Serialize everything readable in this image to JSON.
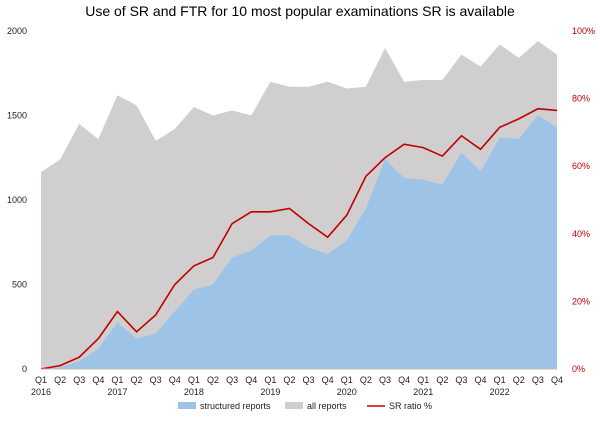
{
  "chart_data": {
    "type": "area",
    "title": "Use of SR and FTR for 10 most popular examinations SR is available",
    "categories": [
      "Q1",
      "Q2",
      "Q3",
      "Q4",
      "Q1",
      "Q2",
      "Q3",
      "Q4",
      "Q1",
      "Q2",
      "Q3",
      "Q4",
      "Q1",
      "Q2",
      "Q3",
      "Q4",
      "Q1",
      "Q2",
      "Q3",
      "Q4",
      "Q1",
      "Q2",
      "Q3",
      "Q4",
      "Q1",
      "Q2",
      "Q3",
      "Q4"
    ],
    "years": [
      {
        "label": "2016",
        "start": 0
      },
      {
        "label": "2017",
        "start": 4
      },
      {
        "label": "2018",
        "start": 8
      },
      {
        "label": "2019",
        "start": 12
      },
      {
        "label": "2020",
        "start": 16
      },
      {
        "label": "2021",
        "start": 20
      },
      {
        "label": "2022",
        "start": 24
      }
    ],
    "series": [
      {
        "name": "structured reports",
        "axis": "left",
        "color": "#9dc3e6",
        "values": [
          0,
          10,
          45,
          120,
          275,
          180,
          210,
          340,
          470,
          500,
          660,
          700,
          790,
          790,
          720,
          680,
          760,
          950,
          1240,
          1130,
          1120,
          1090,
          1280,
          1170,
          1370,
          1360,
          1500,
          1430
        ]
      },
      {
        "name": "all reports",
        "axis": "left",
        "color": "#d0cece",
        "values": [
          1165,
          1240,
          1450,
          1360,
          1620,
          1560,
          1350,
          1420,
          1550,
          1500,
          1530,
          1500,
          1700,
          1670,
          1670,
          1700,
          1660,
          1670,
          1900,
          1700,
          1710,
          1710,
          1860,
          1790,
          1920,
          1840,
          1940,
          1860
        ]
      },
      {
        "name": "SR ratio %",
        "axis": "right",
        "color": "#c00000",
        "values": [
          0,
          1,
          3.5,
          9,
          17,
          11,
          16,
          25,
          30.5,
          33,
          43,
          46.5,
          46.5,
          47.5,
          43,
          39,
          45.5,
          57,
          62.5,
          66.5,
          65.5,
          63,
          69,
          65,
          71.5,
          74,
          77,
          76.5
        ]
      }
    ],
    "ylim_left": [
      0,
      2000
    ],
    "yticks_left": [
      "0",
      "500",
      "1000",
      "1500",
      "2000"
    ],
    "ylim_right": [
      0,
      100
    ],
    "yticks_right": [
      "0%",
      "20%",
      "40%",
      "60%",
      "80%",
      "100%"
    ],
    "grid": false,
    "legend_position": "bottom"
  }
}
